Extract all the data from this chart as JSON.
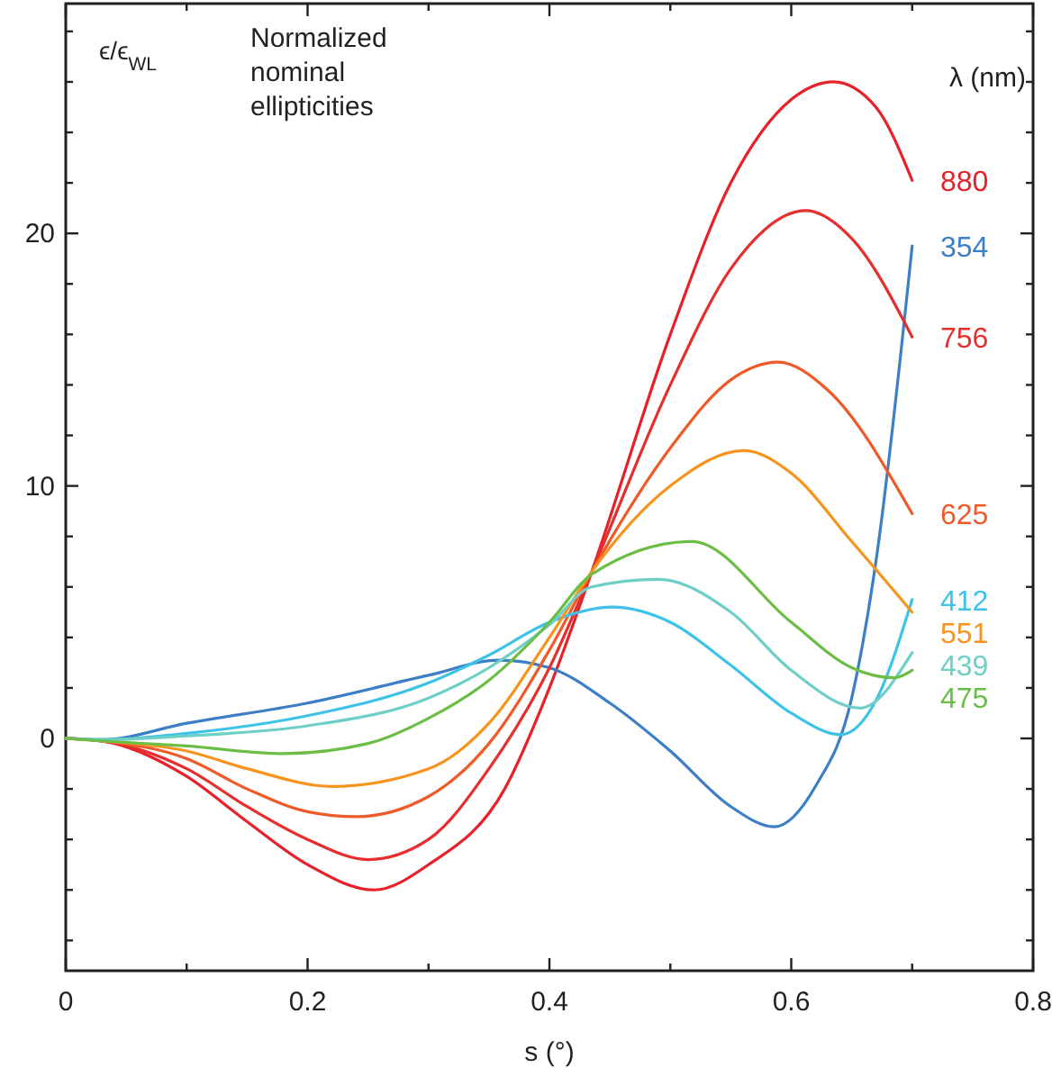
{
  "chart_data": {
    "type": "line",
    "ylabel": "ϵ/ϵ$_{WL}$",
    "xlabel": "s (°)",
    "legend_title": "λ (nm)",
    "annotations": [
      "Normalized nominal ellipticities"
    ],
    "xlim": [
      0,
      0.8
    ],
    "xticks": [
      0,
      {
        "value": 0.1,
        "label": null
      },
      0.2,
      {
        "value": 0.3,
        "label": null
      },
      0.4,
      {
        "value": 0.5,
        "label": null
      },
      0.6,
      {
        "value": 0.7,
        "label": null
      },
      0.8
    ],
    "ylim": [
      -9.2,
      29.1
    ],
    "yticks": [
      {
        "value": -8,
        "label": null
      },
      {
        "value": -6,
        "label": null
      },
      {
        "value": -4,
        "label": null
      },
      {
        "value": -2,
        "label": null
      },
      0,
      {
        "value": 2,
        "label": null
      },
      {
        "value": 4,
        "label": null
      },
      {
        "value": 6,
        "label": null
      },
      {
        "value": 8,
        "label": null
      },
      10,
      {
        "value": 12,
        "label": null
      },
      {
        "value": 14,
        "label": null
      },
      {
        "value": 16,
        "label": null
      },
      {
        "value": 18,
        "label": null
      },
      20,
      {
        "value": 22,
        "label": null
      },
      {
        "value": 24,
        "label": null
      },
      {
        "value": 26,
        "label": null
      },
      {
        "value": 28,
        "label": null
      }
    ],
    "grid": false,
    "marker": "none",
    "line_style": "solid",
    "series": [
      {
        "name": "880",
        "color": "#e8202a",
        "x": [
          0,
          0.03,
          0.1,
          0.15,
          0.2,
          0.255,
          0.3,
          0.363,
          0.4,
          0.435,
          0.5,
          0.55,
          0.6,
          0.635,
          0.67,
          0.7
        ],
        "values": [
          0,
          -0.1,
          -1.5,
          -3.3,
          -5.0,
          -6.0,
          -5.0,
          -2.0,
          2.0,
          6.6,
          16.0,
          22.0,
          25.3,
          26.0,
          25.0,
          22.1
        ]
      },
      {
        "name": "354",
        "color": "#3c7fc6",
        "x": [
          0,
          0.03,
          0.1,
          0.2,
          0.3,
          0.358,
          0.4,
          0.45,
          0.5,
          0.55,
          0.586,
          0.62,
          0.65,
          0.67,
          0.7
        ],
        "values": [
          0,
          -0.05,
          0.6,
          1.4,
          2.5,
          3.1,
          2.8,
          1.4,
          -0.5,
          -2.7,
          -3.5,
          -1.9,
          1.6,
          7.0,
          19.5
        ]
      },
      {
        "name": "756",
        "color": "#e62e2c",
        "x": [
          0,
          0.03,
          0.1,
          0.15,
          0.2,
          0.25,
          0.3,
          0.35,
          0.4,
          0.435,
          0.5,
          0.55,
          0.612,
          0.65,
          0.7
        ],
        "values": [
          0,
          -0.1,
          -1.2,
          -2.7,
          -4.0,
          -4.8,
          -4.0,
          -1.2,
          2.8,
          6.6,
          14.0,
          18.6,
          20.9,
          19.8,
          15.9
        ]
      },
      {
        "name": "625",
        "color": "#f05a28",
        "x": [
          0,
          0.03,
          0.1,
          0.15,
          0.2,
          0.24,
          0.3,
          0.35,
          0.4,
          0.435,
          0.5,
          0.55,
          0.589,
          0.63,
          0.7
        ],
        "values": [
          0,
          -0.1,
          -0.8,
          -2.0,
          -2.9,
          -3.1,
          -2.3,
          -0.2,
          3.5,
          6.6,
          11.5,
          14.2,
          14.9,
          13.8,
          8.9
        ]
      },
      {
        "name": "412",
        "color": "#3ec3e8",
        "x": [
          0,
          0.03,
          0.1,
          0.2,
          0.3,
          0.35,
          0.4,
          0.452,
          0.5,
          0.55,
          0.6,
          0.641,
          0.67,
          0.7
        ],
        "values": [
          0,
          -0.05,
          0.2,
          0.9,
          2.2,
          3.3,
          4.6,
          5.2,
          4.6,
          2.9,
          1.0,
          0.15,
          1.5,
          5.5
        ]
      },
      {
        "name": "551",
        "color": "#f7941d",
        "x": [
          0,
          0.03,
          0.1,
          0.15,
          0.22,
          0.3,
          0.35,
          0.4,
          0.435,
          0.5,
          0.561,
          0.6,
          0.65,
          0.7
        ],
        "values": [
          0,
          -0.1,
          -0.5,
          -1.2,
          -1.9,
          -1.2,
          0.6,
          4.0,
          6.6,
          10.0,
          11.4,
          10.5,
          7.8,
          5.0
        ]
      },
      {
        "name": "439",
        "color": "#6ecfc6",
        "x": [
          0,
          0.03,
          0.1,
          0.2,
          0.3,
          0.35,
          0.4,
          0.435,
          0.49,
          0.55,
          0.6,
          0.657,
          0.7
        ],
        "values": [
          0,
          -0.05,
          0.1,
          0.5,
          1.6,
          2.8,
          4.5,
          6.0,
          6.3,
          5.0,
          2.7,
          1.2,
          3.4
        ]
      },
      {
        "name": "475",
        "color": "#6cbd45",
        "x": [
          0,
          0.03,
          0.1,
          0.18,
          0.25,
          0.3,
          0.35,
          0.4,
          0.435,
          0.518,
          0.6,
          0.65,
          0.685,
          0.7
        ],
        "values": [
          0,
          -0.1,
          -0.3,
          -0.6,
          -0.2,
          0.8,
          2.3,
          4.6,
          6.5,
          7.8,
          4.6,
          2.8,
          2.4,
          2.7
        ]
      }
    ]
  }
}
